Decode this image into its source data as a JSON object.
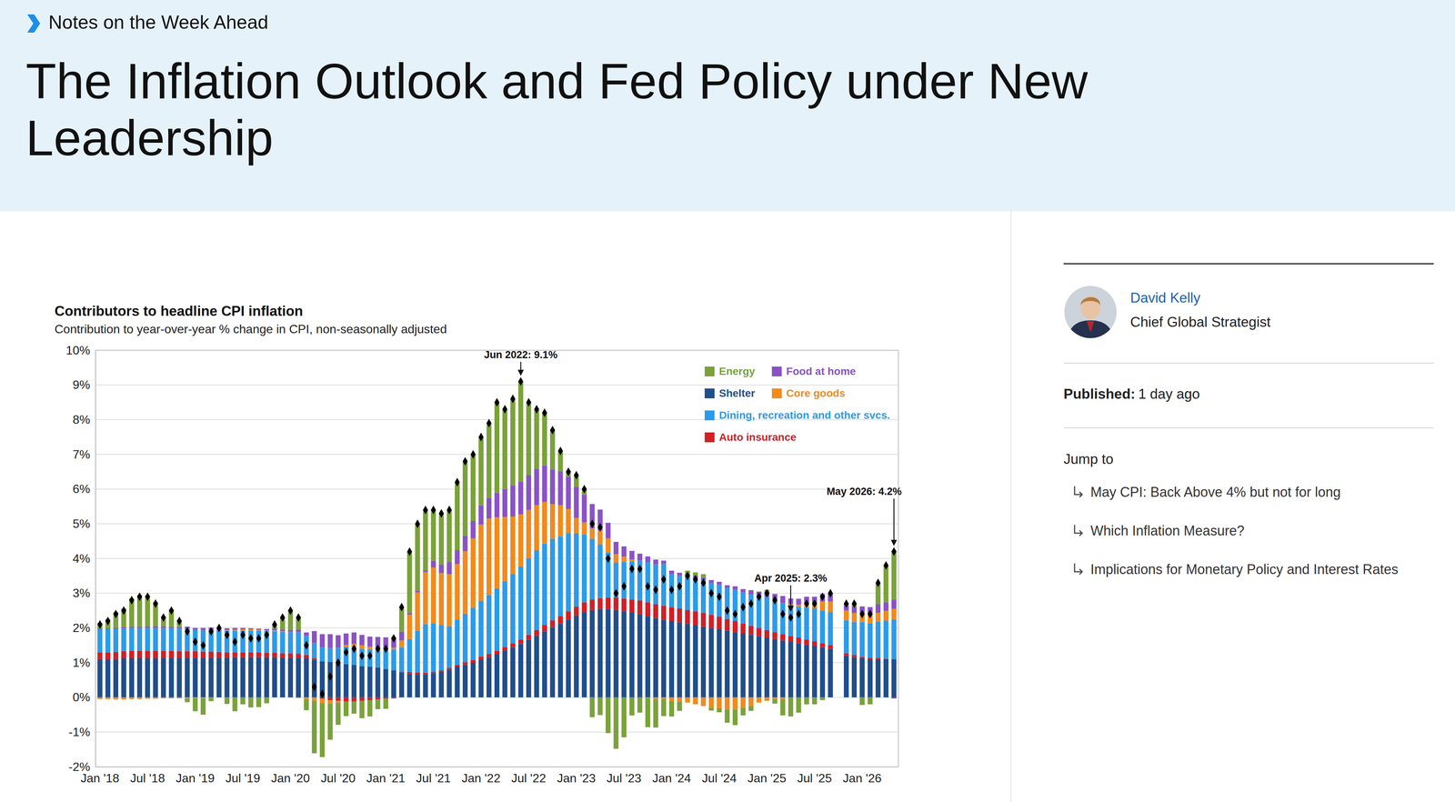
{
  "header": {
    "kicker": "Notes on the Week Ahead",
    "title": "The Inflation Outlook and Fed Policy under New Leadership"
  },
  "author": {
    "name": "David Kelly",
    "role": "Chief Global Strategist"
  },
  "published": {
    "label": "Published:",
    "value": "1 day ago"
  },
  "jump_to": {
    "title": "Jump to",
    "links": [
      "May CPI: Back Above 4% but not for long",
      "Which Inflation Measure?",
      "Implications for Monetary Policy and Interest Rates"
    ]
  },
  "chart_data": {
    "type": "bar",
    "stacked": true,
    "grid": true,
    "legend": "upper right",
    "title": "Contributors to headline CPI inflation",
    "subtitle": "Contribution to year-over-year % change in CPI, non-seasonally adjusted",
    "x": [
      "2018-01",
      "2018-02",
      "2018-03",
      "2018-04",
      "2018-05",
      "2018-06",
      "2018-07",
      "2018-08",
      "2018-09",
      "2018-10",
      "2018-11",
      "2018-12",
      "2019-01",
      "2019-02",
      "2019-03",
      "2019-04",
      "2019-05",
      "2019-06",
      "2019-07",
      "2019-08",
      "2019-09",
      "2019-10",
      "2019-11",
      "2019-12",
      "2020-01",
      "2020-02",
      "2020-03",
      "2020-04",
      "2020-05",
      "2020-06",
      "2020-07",
      "2020-08",
      "2020-09",
      "2020-10",
      "2020-11",
      "2020-12",
      "2021-01",
      "2021-02",
      "2021-03",
      "2021-04",
      "2021-05",
      "2021-06",
      "2021-07",
      "2021-08",
      "2021-09",
      "2021-10",
      "2021-11",
      "2021-12",
      "2022-01",
      "2022-02",
      "2022-03",
      "2022-04",
      "2022-05",
      "2022-06",
      "2022-07",
      "2022-08",
      "2022-09",
      "2022-10",
      "2022-11",
      "2022-12",
      "2023-01",
      "2023-02",
      "2023-03",
      "2023-04",
      "2023-05",
      "2023-06",
      "2023-07",
      "2023-08",
      "2023-09",
      "2023-10",
      "2023-11",
      "2023-12",
      "2024-01",
      "2024-02",
      "2024-03",
      "2024-04",
      "2024-05",
      "2024-06",
      "2024-07",
      "2024-08",
      "2024-09",
      "2024-10",
      "2024-11",
      "2024-12",
      "2025-01",
      "2025-02",
      "2025-03",
      "2025-04",
      "2025-05",
      "2025-06",
      "2025-07",
      "2025-08",
      "2025-09",
      "2025-10",
      "2025-11",
      "2025-12",
      "2026-01",
      "2026-02",
      "2026-03",
      "2026-04",
      "2026-05"
    ],
    "xticks": [
      {
        "value": "2018-01",
        "label": "Jan '18"
      },
      {
        "value": "2018-07",
        "label": "Jul '18"
      },
      {
        "value": "2019-01",
        "label": "Jan '19"
      },
      {
        "value": "2019-07",
        "label": "Jul '19"
      },
      {
        "value": "2020-01",
        "label": "Jan '20"
      },
      {
        "value": "2020-07",
        "label": "Jul '20"
      },
      {
        "value": "2021-01",
        "label": "Jan '21"
      },
      {
        "value": "2021-07",
        "label": "Jul '21"
      },
      {
        "value": "2022-01",
        "label": "Jan '22"
      },
      {
        "value": "2022-07",
        "label": "Jul '22"
      },
      {
        "value": "2023-01",
        "label": "Jan '23"
      },
      {
        "value": "2023-07",
        "label": "Jul '23"
      },
      {
        "value": "2024-01",
        "label": "Jan '24"
      },
      {
        "value": "2024-07",
        "label": "Jul '24"
      },
      {
        "value": "2025-01",
        "label": "Jan '25"
      },
      {
        "value": "2025-07",
        "label": "Jul '25"
      },
      {
        "value": "2026-01",
        "label": "Jan '26"
      }
    ],
    "ylim": [
      -2,
      10
    ],
    "yticks": [
      {
        "value": -2,
        "label": "-2%"
      },
      {
        "value": -1,
        "label": "-1%"
      },
      {
        "value": 0,
        "label": "0%"
      },
      {
        "value": 1,
        "label": "1%"
      },
      {
        "value": 2,
        "label": "2%"
      },
      {
        "value": 3,
        "label": "3%"
      },
      {
        "value": 4,
        "label": "4%"
      },
      {
        "value": 5,
        "label": "5%"
      },
      {
        "value": 6,
        "label": "6%"
      },
      {
        "value": 7,
        "label": "7%"
      },
      {
        "value": 8,
        "label": "8%"
      },
      {
        "value": 9,
        "label": "9%"
      },
      {
        "value": 10,
        "label": "10%"
      }
    ],
    "series": [
      {
        "name": "Shelter",
        "color": "#1f4e8c",
        "values": [
          1.1,
          1.1,
          1.1,
          1.12,
          1.12,
          1.12,
          1.12,
          1.12,
          1.13,
          1.13,
          1.13,
          1.13,
          1.14,
          1.14,
          1.15,
          1.15,
          1.15,
          1.16,
          1.16,
          1.16,
          1.16,
          1.16,
          1.16,
          1.15,
          1.15,
          1.14,
          1.12,
          1.08,
          1.04,
          1.02,
          0.98,
          0.96,
          0.94,
          0.9,
          0.88,
          0.86,
          0.82,
          0.78,
          0.72,
          0.68,
          0.66,
          0.66,
          0.7,
          0.74,
          0.8,
          0.88,
          0.94,
          1.0,
          1.1,
          1.16,
          1.24,
          1.34,
          1.44,
          1.54,
          1.66,
          1.78,
          1.9,
          2.02,
          2.12,
          2.24,
          2.36,
          2.46,
          2.52,
          2.54,
          2.54,
          2.52,
          2.48,
          2.44,
          2.4,
          2.34,
          2.28,
          2.24,
          2.2,
          2.16,
          2.12,
          2.08,
          2.04,
          2.0,
          1.96,
          1.92,
          1.88,
          1.84,
          1.8,
          1.76,
          1.72,
          1.68,
          1.64,
          1.6,
          1.56,
          1.52,
          1.48,
          1.44,
          1.4,
          null,
          1.2,
          1.16,
          1.12,
          1.1,
          1.1,
          1.1,
          1.1
        ]
      },
      {
        "name": "Auto insurance",
        "color": "#d11f26",
        "values": [
          0.2,
          0.2,
          0.21,
          0.21,
          0.22,
          0.22,
          0.22,
          0.22,
          0.21,
          0.21,
          0.2,
          0.2,
          0.19,
          0.18,
          0.17,
          0.16,
          0.15,
          0.14,
          0.14,
          0.14,
          0.14,
          0.13,
          0.13,
          0.12,
          0.12,
          0.12,
          0.1,
          0.04,
          -0.04,
          -0.08,
          -0.1,
          -0.12,
          -0.12,
          -0.1,
          -0.08,
          -0.06,
          -0.04,
          -0.03,
          0.02,
          0.05,
          0.06,
          0.05,
          0.04,
          0.04,
          0.05,
          0.06,
          0.07,
          0.08,
          0.08,
          0.09,
          0.1,
          0.11,
          0.12,
          0.13,
          0.14,
          0.16,
          0.18,
          0.2,
          0.22,
          0.24,
          0.26,
          0.28,
          0.3,
          0.32,
          0.34,
          0.36,
          0.37,
          0.38,
          0.39,
          0.4,
          0.4,
          0.4,
          0.4,
          0.4,
          0.4,
          0.4,
          0.39,
          0.38,
          0.36,
          0.34,
          0.32,
          0.29,
          0.26,
          0.24,
          0.22,
          0.2,
          0.18,
          0.17,
          0.16,
          0.15,
          0.14,
          0.12,
          0.11,
          null,
          0.07,
          0.06,
          0.05,
          0.04,
          0.03,
          0.01,
          -0.03
        ]
      },
      {
        "name": "Dining, recreation and other svcs.",
        "color": "#2b9bea",
        "values": [
          0.66,
          0.66,
          0.66,
          0.66,
          0.66,
          0.66,
          0.66,
          0.66,
          0.66,
          0.66,
          0.66,
          0.66,
          0.62,
          0.62,
          0.62,
          0.62,
          0.62,
          0.62,
          0.62,
          0.62,
          0.62,
          0.62,
          0.62,
          0.62,
          0.62,
          0.62,
          0.55,
          0.45,
          0.4,
          0.4,
          0.45,
          0.5,
          0.5,
          0.5,
          0.5,
          0.5,
          0.55,
          0.6,
          0.7,
          0.95,
          1.2,
          1.4,
          1.4,
          1.3,
          1.2,
          1.3,
          1.4,
          1.5,
          1.6,
          1.7,
          1.8,
          1.9,
          2.0,
          2.1,
          2.2,
          2.3,
          2.35,
          2.35,
          2.3,
          2.25,
          2.1,
          1.95,
          1.75,
          1.55,
          1.3,
          1.0,
          1.05,
          1.1,
          1.15,
          1.15,
          1.15,
          1.2,
          0.95,
          0.95,
          0.95,
          0.95,
          0.95,
          0.92,
          0.92,
          0.9,
          0.9,
          0.9,
          0.9,
          0.9,
          0.95,
          0.95,
          0.9,
          0.9,
          0.9,
          0.92,
          0.95,
          0.95,
          0.95,
          null,
          0.95,
          0.95,
          1.0,
          1.0,
          1.05,
          1.1,
          1.15
        ]
      },
      {
        "name": "Core goods",
        "color": "#f28a1c",
        "values": [
          -0.05,
          -0.05,
          -0.06,
          -0.06,
          -0.05,
          -0.05,
          -0.04,
          -0.04,
          -0.03,
          -0.03,
          -0.03,
          -0.03,
          -0.02,
          -0.02,
          -0.01,
          0.0,
          0.02,
          0.03,
          0.04,
          0.04,
          0.03,
          0.02,
          0.02,
          0.01,
          0.0,
          -0.02,
          -0.05,
          -0.1,
          -0.12,
          -0.1,
          -0.05,
          0.05,
          0.1,
          0.1,
          0.08,
          0.06,
          0.06,
          0.05,
          0.2,
          0.7,
          1.1,
          1.5,
          1.6,
          1.5,
          1.5,
          1.6,
          1.8,
          2.0,
          2.2,
          2.2,
          2.05,
          1.85,
          1.65,
          1.5,
          1.4,
          1.3,
          1.2,
          1.0,
          0.9,
          0.7,
          0.45,
          0.35,
          0.3,
          0.4,
          0.4,
          0.25,
          0.15,
          0.05,
          0.0,
          -0.02,
          -0.05,
          -0.05,
          -0.1,
          -0.12,
          -0.15,
          -0.2,
          -0.25,
          -0.3,
          -0.32,
          -0.35,
          -0.35,
          -0.3,
          -0.25,
          -0.15,
          -0.1,
          -0.05,
          -0.05,
          0.02,
          0.05,
          0.12,
          0.15,
          0.25,
          0.3,
          null,
          0.28,
          0.26,
          0.25,
          0.24,
          0.26,
          0.28,
          0.3
        ]
      },
      {
        "name": "Food at home",
        "color": "#8a52c6",
        "values": [
          0.03,
          0.03,
          0.03,
          0.04,
          0.04,
          0.04,
          0.05,
          0.05,
          0.05,
          0.04,
          0.04,
          0.05,
          0.05,
          0.06,
          0.07,
          0.06,
          0.05,
          0.05,
          0.04,
          0.03,
          0.03,
          0.04,
          0.05,
          0.05,
          0.05,
          0.07,
          0.1,
          0.34,
          0.38,
          0.4,
          0.36,
          0.33,
          0.33,
          0.3,
          0.29,
          0.32,
          0.3,
          0.25,
          0.25,
          0.05,
          0.05,
          0.05,
          0.2,
          0.25,
          0.35,
          0.4,
          0.45,
          0.5,
          0.55,
          0.6,
          0.7,
          0.8,
          0.9,
          0.95,
          1.0,
          1.05,
          1.05,
          1.0,
          0.97,
          0.93,
          0.9,
          0.8,
          0.7,
          0.6,
          0.45,
          0.35,
          0.3,
          0.25,
          0.2,
          0.17,
          0.14,
          0.1,
          0.1,
          0.08,
          0.09,
          0.08,
          0.08,
          0.08,
          0.09,
          0.07,
          0.1,
          0.09,
          0.13,
          0.14,
          0.15,
          0.15,
          0.2,
          0.16,
          0.17,
          0.19,
          0.18,
          0.22,
          0.22,
          null,
          0.15,
          0.19,
          0.2,
          0.22,
          0.24,
          0.25,
          0.26
        ]
      },
      {
        "name": "Energy",
        "color": "#7aa23a",
        "values": [
          0.16,
          0.26,
          0.46,
          0.53,
          0.81,
          0.91,
          0.89,
          0.69,
          0.28,
          0.49,
          0.2,
          -0.11,
          -0.38,
          -0.48,
          -0.1,
          0.01,
          -0.19,
          -0.4,
          -0.2,
          -0.29,
          -0.28,
          -0.17,
          0.12,
          0.35,
          0.56,
          0.37,
          -0.32,
          -1.51,
          -1.56,
          -1.04,
          -0.64,
          -0.42,
          -0.35,
          -0.5,
          -0.47,
          -0.28,
          -0.29,
          0.05,
          0.71,
          1.77,
          1.93,
          1.74,
          1.46,
          1.47,
          1.5,
          1.96,
          2.14,
          1.92,
          1.97,
          2.15,
          2.61,
          2.3,
          2.49,
          2.88,
          2.1,
          1.71,
          1.52,
          1.13,
          0.59,
          0.14,
          0.33,
          0.16,
          -0.57,
          -0.51,
          -1.03,
          -1.48,
          -1.15,
          -0.52,
          -0.44,
          -0.84,
          -0.82,
          -0.49,
          -0.45,
          -0.27,
          0.09,
          0.09,
          0.09,
          -0.08,
          -0.11,
          -0.38,
          -0.45,
          -0.22,
          -0.14,
          0.01,
          0.06,
          -0.13,
          -0.47,
          -0.55,
          -0.44,
          -0.2,
          -0.2,
          -0.08,
          0.02,
          null,
          0.05,
          0.08,
          -0.22,
          -0.2,
          0.62,
          1.06,
          1.42
        ]
      },
      {
        "type": "scatter",
        "marker": "diamond",
        "color": "#000000",
        "values": [
          2.1,
          2.2,
          2.4,
          2.5,
          2.8,
          2.9,
          2.9,
          2.7,
          2.3,
          2.5,
          2.2,
          1.9,
          1.6,
          1.5,
          1.9,
          2.0,
          1.8,
          1.6,
          1.8,
          1.7,
          1.7,
          1.8,
          2.1,
          2.3,
          2.5,
          2.3,
          1.5,
          0.3,
          0.1,
          0.6,
          1.0,
          1.3,
          1.4,
          1.2,
          1.2,
          1.4,
          1.4,
          1.7,
          2.6,
          4.2,
          5.0,
          5.4,
          5.4,
          5.3,
          5.4,
          6.2,
          6.8,
          7.0,
          7.5,
          7.9,
          8.5,
          8.3,
          8.6,
          9.1,
          8.5,
          8.3,
          8.2,
          7.7,
          7.1,
          6.5,
          6.4,
          6.0,
          5.0,
          4.9,
          4.0,
          3.0,
          3.2,
          3.7,
          3.7,
          3.2,
          3.1,
          3.4,
          3.1,
          3.2,
          3.5,
          3.4,
          3.3,
          3.0,
          2.9,
          2.5,
          2.4,
          2.6,
          2.7,
          2.9,
          3.0,
          2.8,
          2.4,
          2.3,
          2.4,
          2.7,
          2.7,
          2.9,
          3.0,
          null,
          2.7,
          2.7,
          2.4,
          2.4,
          3.3,
          3.8,
          4.2
        ]
      }
    ],
    "annotations": [
      {
        "x": "2022-06",
        "y": 9.1,
        "text": "Jun 2022: 9.1%"
      },
      {
        "x": "2025-04",
        "y": 2.3,
        "text": "Apr 2025: 2.3%"
      },
      {
        "x": "2026-05",
        "y": 4.2,
        "text": "May 2026: 4.2%"
      }
    ]
  }
}
